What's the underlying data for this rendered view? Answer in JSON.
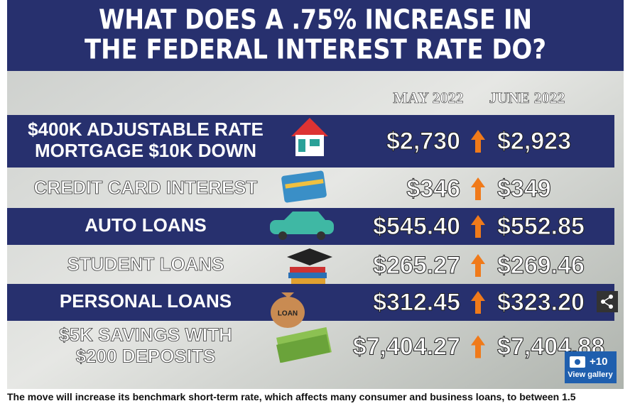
{
  "infographic": {
    "title_lines": [
      "WHAT DOES A .75% INCREASE IN",
      "THE FEDERAL INTEREST RATE DO?"
    ],
    "columns": [
      "MAY 2022",
      "JUNE 2022"
    ],
    "rows": [
      {
        "label_lines": [
          "$400K ADJUSTABLE RATE",
          "MORTGAGE $10K DOWN"
        ],
        "may": "$2,730",
        "june": "$2,923"
      },
      {
        "label_lines": [
          "CREDIT CARD INTEREST"
        ],
        "may": "$346",
        "june": "$349"
      },
      {
        "label_lines": [
          "AUTO LOANS"
        ],
        "may": "$545.40",
        "june": "$552.85"
      },
      {
        "label_lines": [
          "STUDENT LOANS"
        ],
        "may": "$265.27",
        "june": "$269.46"
      },
      {
        "label_lines": [
          "PERSONAL LOANS"
        ],
        "may": "$312.45",
        "june": "$323.20"
      },
      {
        "label_lines": [
          "$5K SAVINGS WITH",
          "$200 DEPOSITS"
        ],
        "may": "$7,404.27",
        "june": "$7,404.88"
      }
    ],
    "loan_bag_label": "LOAN"
  },
  "gallery": {
    "count": "+10",
    "label": "View gallery"
  },
  "caption": "The move will increase its benchmark short-term rate, which affects many consumer and business loans, to between 1.5"
}
